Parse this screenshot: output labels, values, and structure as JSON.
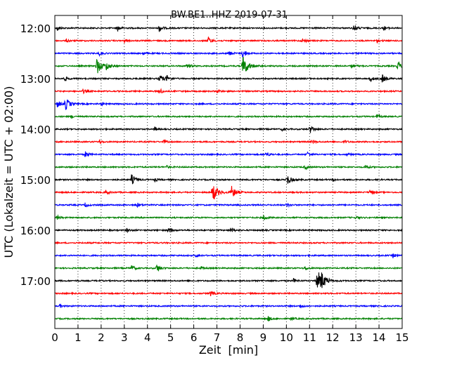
{
  "chart_data": {
    "type": "line",
    "title": "BW.BE1..HHZ 2019-07-31",
    "xlabel": "Zeit  [min]",
    "ylabel": "UTC (Lokalzeit = UTC + 02:00)",
    "xlim": [
      0,
      15
    ],
    "x_ticks": [
      "0",
      "1",
      "2",
      "3",
      "4",
      "5",
      "6",
      "7",
      "8",
      "9",
      "10",
      "11",
      "12",
      "13",
      "14",
      "15"
    ],
    "y_tick_labels": [
      "12:00",
      "13:00",
      "14:00",
      "15:00",
      "16:00",
      "17:00"
    ],
    "trace_minutes_per_row": 15,
    "grid": "vertical dotted lines at each minute",
    "colors_cycle": [
      "#000000",
      "#ff0000",
      "#0000ff",
      "#008000"
    ],
    "rows": [
      {
        "time": "12:00",
        "color": "#000000",
        "events": [
          [
            0.1,
            0.5
          ],
          [
            2.7,
            0.6
          ],
          [
            4.5,
            0.7
          ],
          [
            12.9,
            0.7
          ],
          [
            14.2,
            0.4
          ]
        ]
      },
      {
        "time": "12:15",
        "color": "#ff0000",
        "events": [
          [
            0.5,
            0.3
          ],
          [
            3.0,
            0.3
          ],
          [
            6.6,
            0.8
          ],
          [
            10.7,
            0.5
          ],
          [
            13.9,
            0.3
          ]
        ]
      },
      {
        "time": "12:30",
        "color": "#0000ff",
        "events": [
          [
            1.9,
            0.4
          ],
          [
            3.8,
            0.3
          ],
          [
            8.1,
            0.9
          ],
          [
            7.5,
            0.5
          ]
        ]
      },
      {
        "time": "12:45",
        "color": "#008000",
        "events": [
          [
            1.8,
            1.6
          ],
          [
            2.2,
            0.8
          ],
          [
            5.7,
            0.6
          ],
          [
            8.1,
            2.0
          ],
          [
            12.8,
            0.5
          ],
          [
            14.8,
            0.9
          ]
        ]
      },
      {
        "time": "13:00",
        "color": "#000000",
        "events": [
          [
            0.4,
            0.5
          ],
          [
            4.5,
            0.9
          ],
          [
            4.8,
            0.6
          ],
          [
            13.6,
            0.6
          ],
          [
            14.1,
            0.9
          ]
        ]
      },
      {
        "time": "13:15",
        "color": "#ff0000",
        "events": [
          [
            1.2,
            0.4
          ],
          [
            4.5,
            0.6
          ],
          [
            7.0,
            0.4
          ]
        ]
      },
      {
        "time": "13:30",
        "color": "#0000ff",
        "events": [
          [
            0.1,
            0.7
          ],
          [
            0.45,
            1.2
          ],
          [
            2.0,
            0.3
          ]
        ]
      },
      {
        "time": "13:45",
        "color": "#008000",
        "events": [
          [
            0.7,
            0.3
          ],
          [
            13.9,
            0.4
          ]
        ]
      },
      {
        "time": "14:00",
        "color": "#000000",
        "events": [
          [
            4.3,
            0.4
          ],
          [
            9.8,
            0.3
          ],
          [
            11.0,
            0.8
          ]
        ]
      },
      {
        "time": "14:15",
        "color": "#ff0000",
        "events": [
          [
            1.9,
            0.4
          ],
          [
            4.7,
            0.3
          ],
          [
            11.1,
            0.4
          ],
          [
            12.5,
            0.3
          ]
        ]
      },
      {
        "time": "14:30",
        "color": "#0000ff",
        "events": [
          [
            1.3,
            0.6
          ],
          [
            9.1,
            0.6
          ],
          [
            10.9,
            0.5
          ],
          [
            12.6,
            0.3
          ]
        ]
      },
      {
        "time": "14:45",
        "color": "#008000",
        "events": [
          [
            4.8,
            0.3
          ],
          [
            10.8,
            0.4
          ],
          [
            13.4,
            0.4
          ]
        ]
      },
      {
        "time": "15:00",
        "color": "#000000",
        "events": [
          [
            3.3,
            1.0
          ],
          [
            4.3,
            0.3
          ],
          [
            10.0,
            1.1
          ],
          [
            12.0,
            0.3
          ]
        ]
      },
      {
        "time": "15:15",
        "color": "#ff0000",
        "events": [
          [
            2.2,
            0.4
          ],
          [
            6.8,
            1.8
          ],
          [
            7.6,
            1.3
          ],
          [
            13.6,
            0.5
          ]
        ]
      },
      {
        "time": "15:30",
        "color": "#0000ff",
        "events": [
          [
            1.3,
            0.4
          ],
          [
            3.5,
            0.6
          ],
          [
            10.0,
            0.4
          ]
        ]
      },
      {
        "time": "15:45",
        "color": "#008000",
        "events": [
          [
            0.1,
            0.4
          ],
          [
            9.0,
            0.6
          ],
          [
            13.0,
            0.3
          ]
        ]
      },
      {
        "time": "16:00",
        "color": "#000000",
        "events": [
          [
            3.1,
            0.4
          ],
          [
            4.9,
            0.6
          ],
          [
            7.6,
            0.5
          ]
        ]
      },
      {
        "time": "16:15",
        "color": "#ff0000",
        "events": []
      },
      {
        "time": "16:30",
        "color": "#0000ff",
        "events": [
          [
            6.1,
            0.3
          ],
          [
            14.6,
            0.4
          ]
        ]
      },
      {
        "time": "16:45",
        "color": "#008000",
        "events": [
          [
            3.3,
            0.6
          ],
          [
            4.4,
            0.8
          ],
          [
            6.3,
            0.3
          ],
          [
            10.8,
            0.4
          ]
        ]
      },
      {
        "time": "17:00",
        "color": "#000000",
        "events": [
          [
            10.3,
            0.4
          ],
          [
            11.3,
            2.2
          ],
          [
            11.5,
            1.0
          ]
        ]
      },
      {
        "time": "17:15",
        "color": "#ff0000",
        "events": [
          [
            6.7,
            0.6
          ]
        ]
      },
      {
        "time": "17:30",
        "color": "#0000ff",
        "events": [
          [
            0.2,
            0.3
          ],
          [
            10.6,
            0.4
          ]
        ]
      },
      {
        "time": "17:45",
        "color": "#008000",
        "events": [
          [
            9.2,
            0.5
          ],
          [
            10.2,
            0.3
          ]
        ]
      }
    ]
  }
}
